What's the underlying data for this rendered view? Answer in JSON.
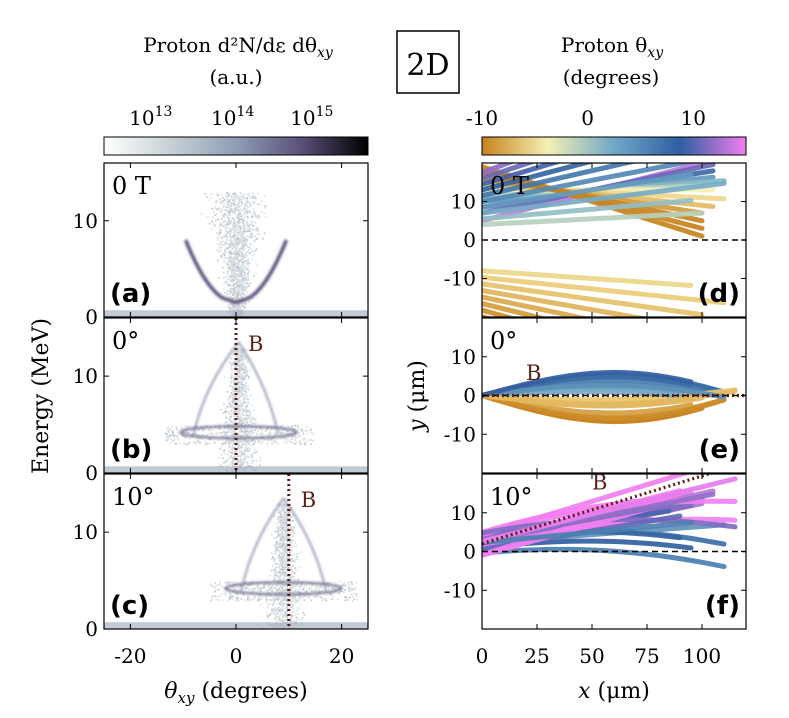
{
  "figure": {
    "tag": "2D"
  },
  "colorbar_left": {
    "title_line1": "Proton d²N/dε dθ",
    "title_sub": "xy",
    "units": "(a.u.)",
    "ticks": [
      {
        "label": "10",
        "exp": "13",
        "frac": 0.2
      },
      {
        "label": "10",
        "exp": "14",
        "frac": 0.51
      },
      {
        "label": "10",
        "exp": "15",
        "frac": 0.81
      }
    ],
    "colors": [
      "#ffffff",
      "#c7d2d5",
      "#8f9db5",
      "#5a4f78",
      "#000000"
    ]
  },
  "colorbar_right": {
    "title_line1": "Proton θ",
    "title_sub": "xy",
    "units": "(degrees)",
    "range": [
      -10,
      15
    ],
    "ticks": [
      {
        "label": "-10",
        "value": -10
      },
      {
        "label": "0",
        "value": 0
      },
      {
        "label": "10",
        "value": 10
      }
    ],
    "colors": [
      "#c8821e",
      "#f4f0b4",
      "#6fa8c8",
      "#2e5fa0",
      "#f27ff2"
    ]
  },
  "chart_data": [
    {
      "type": "heatmap",
      "panel": "a",
      "label": "(a)",
      "field_label": "0 T",
      "xlim": [
        -25,
        25
      ],
      "ylim": [
        0,
        16
      ],
      "b_line": null,
      "b_label": ""
    },
    {
      "type": "heatmap",
      "panel": "b",
      "label": "(b)",
      "field_label": "0°",
      "xlim": [
        -25,
        25
      ],
      "ylim": [
        0,
        16
      ],
      "b_line": 0,
      "b_label": "B"
    },
    {
      "type": "heatmap",
      "panel": "c",
      "label": "(c)",
      "field_label": "10°",
      "xlim": [
        -25,
        25
      ],
      "ylim": [
        0,
        16
      ],
      "b_line": 10,
      "b_label": "B"
    },
    {
      "type": "line",
      "panel": "d",
      "label": "(d)",
      "field_label": "0 T",
      "xlim": [
        0,
        120
      ],
      "ylim": [
        -20,
        20
      ],
      "b_line": null,
      "b_label": ""
    },
    {
      "type": "line",
      "panel": "e",
      "label": "(e)",
      "field_label": "0°",
      "xlim": [
        0,
        120
      ],
      "ylim": [
        -20,
        20
      ],
      "b_line": [
        [
          0,
          0
        ],
        [
          120,
          0
        ]
      ],
      "b_label": "B"
    },
    {
      "type": "line",
      "panel": "f",
      "label": "(f)",
      "field_label": "10°",
      "xlim": [
        0,
        120
      ],
      "ylim": [
        -20,
        20
      ],
      "b_line": [
        [
          0,
          2
        ],
        [
          120,
          23
        ]
      ],
      "b_label": "B"
    }
  ],
  "left_axes": {
    "ylabel": "Energy (MeV)",
    "xlabel_sym": "θ",
    "xlabel_sub": "xy",
    "xlabel_rest": " (degrees)",
    "xticks": [
      {
        "label": "-20",
        "value": -20
      },
      {
        "label": "0",
        "value": 0
      },
      {
        "label": "20",
        "value": 20
      }
    ],
    "yticks": [
      {
        "label": "0",
        "value": 0
      },
      {
        "label": "10",
        "value": 10
      }
    ]
  },
  "right_axes": {
    "ylabel_sym": "y",
    "ylabel_rest": " (μm)",
    "xlabel_sym": "x",
    "xlabel_rest": " (μm)",
    "xticks": [
      {
        "label": "0",
        "value": 0
      },
      {
        "label": "25",
        "value": 25
      },
      {
        "label": "50",
        "value": 50
      },
      {
        "label": "75",
        "value": 75
      },
      {
        "label": "100",
        "value": 100
      }
    ],
    "yticks": [
      {
        "label": "10",
        "value": 10
      },
      {
        "label": "0",
        "value": 0
      },
      {
        "label": "-10",
        "value": -10
      }
    ]
  }
}
